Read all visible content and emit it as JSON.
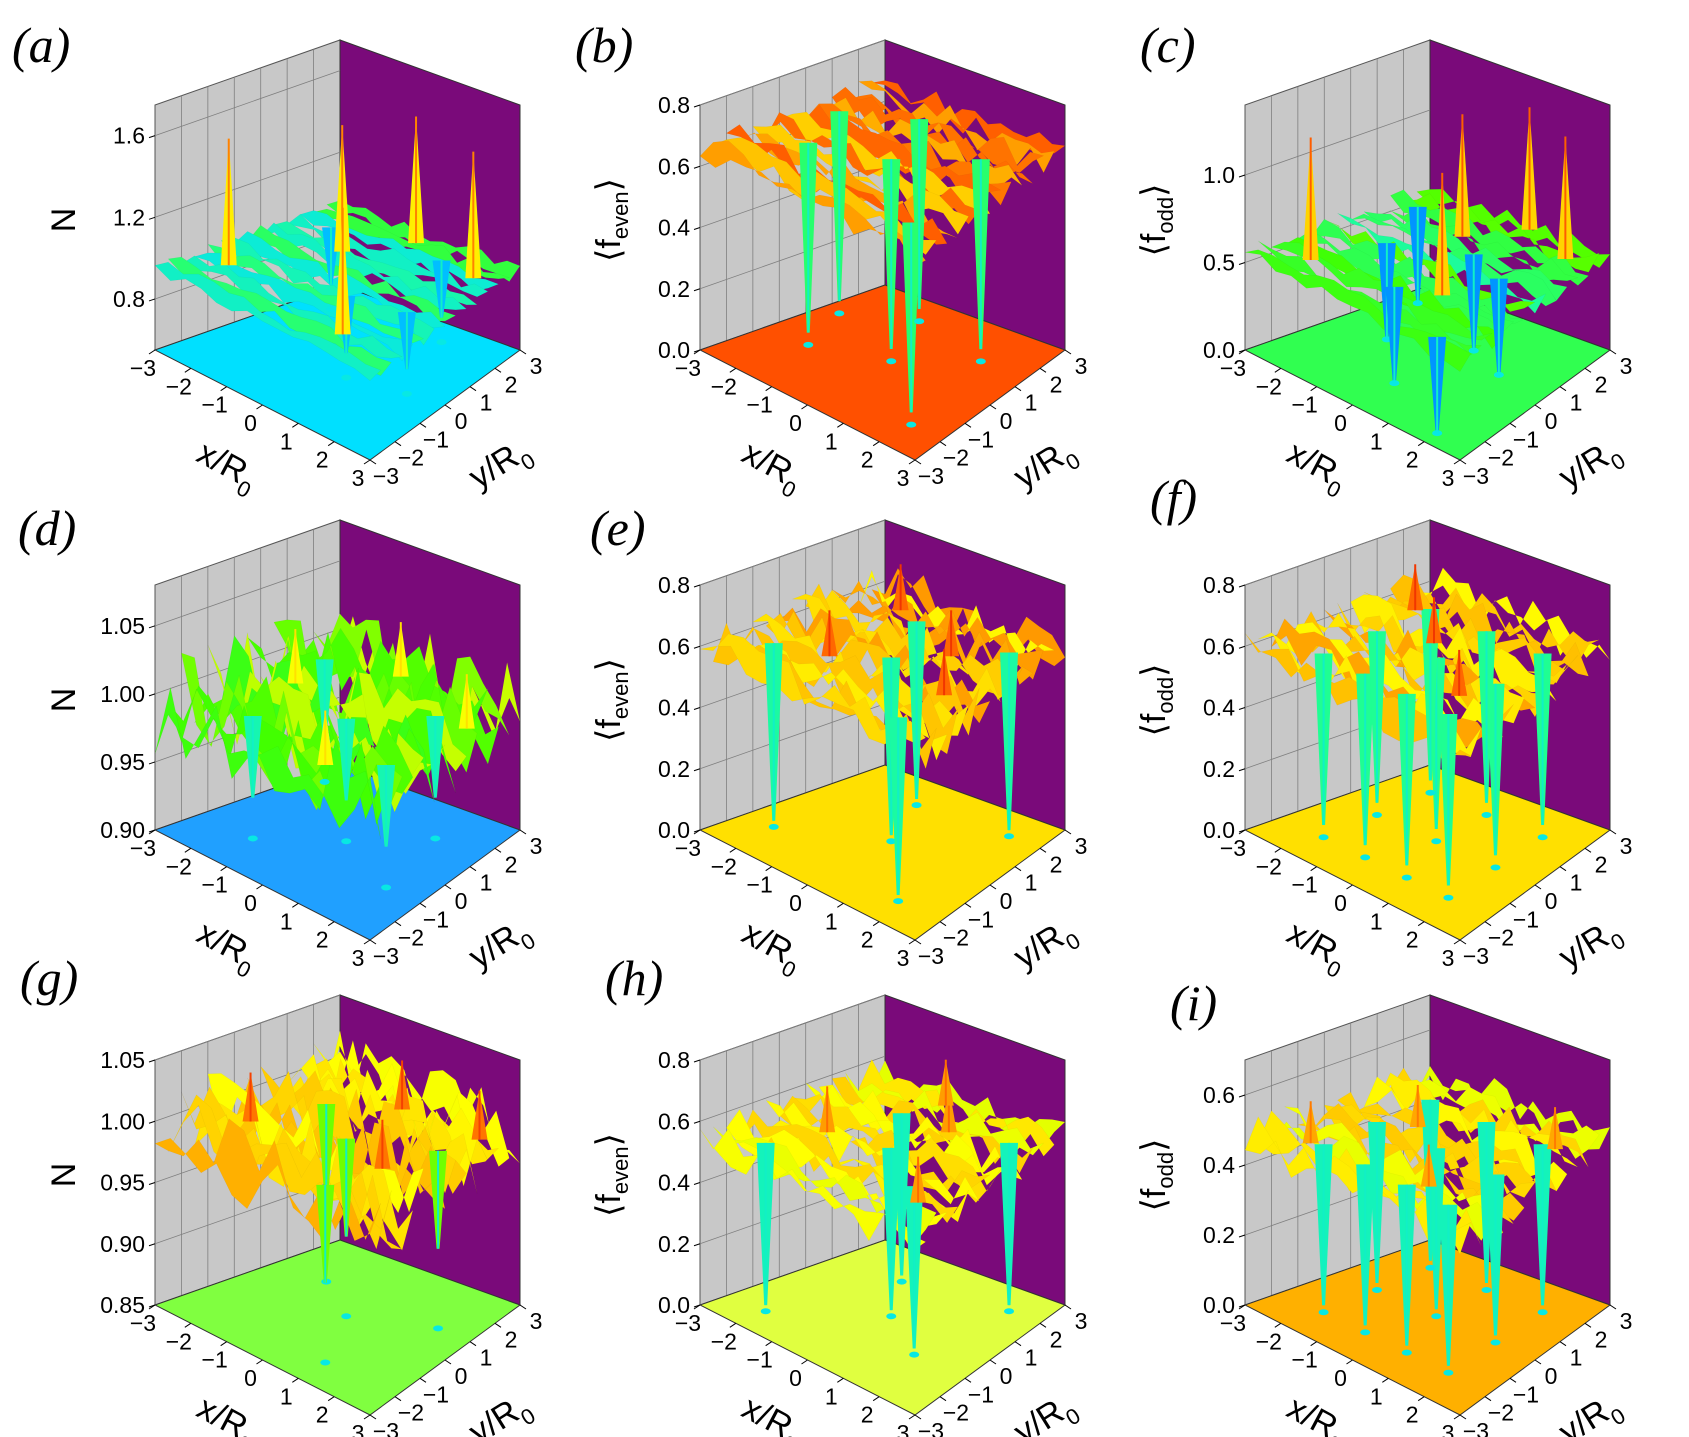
{
  "figure": {
    "colors": {
      "wall_gray": "#c8c8c8",
      "wall_purple": "#7a0a7a",
      "grid": "#7f7f7f",
      "colormap": [
        "#0000c8",
        "#0060ff",
        "#00e0ff",
        "#20ff90",
        "#40ff00",
        "#c0ff00",
        "#ffff00",
        "#ffc000",
        "#ff6000",
        "#e00000"
      ]
    }
  },
  "chart_data": [
    {
      "panel": "(a)",
      "type": "surface3d",
      "zlabel": "N",
      "zlabel_parts": [
        "N"
      ],
      "zticks": [
        "1.6",
        "1.2",
        "0.8"
      ],
      "ztick_values": [
        1.6,
        1.2,
        0.8
      ],
      "zlim": [
        0.55,
        1.75
      ],
      "xticks": [
        "−3",
        "−2",
        "−1",
        "0",
        "1",
        "2",
        "3"
      ],
      "yticks": [
        "−3",
        "−2",
        "−1",
        "0",
        "1",
        "2",
        "3"
      ],
      "xlabel": "x/R",
      "ylabel": "y/R",
      "axis_subscript": "0",
      "base_level": 0.95,
      "roughness": 0.03,
      "depth": 0.28,
      "spike_height": 0.62,
      "spikes_up": [
        [
          -2.2,
          -1.5
        ],
        [
          -1.0,
          1.0
        ],
        [
          1.5,
          -2.0
        ],
        [
          2.3,
          2.0
        ],
        [
          0.0,
          2.5
        ]
      ],
      "spikes_down": [
        [
          0.5,
          -0.6
        ],
        [
          -2.1,
          1.8
        ],
        [
          2.0,
          -0.2
        ],
        [
          1.1,
          2.2
        ]
      ],
      "floor_color": "#00e0ff"
    },
    {
      "panel": "(b)",
      "type": "surface3d",
      "zlabel": "⟨f_even⟩",
      "zlabel_parts": [
        "⟨f",
        "even",
        "⟩"
      ],
      "zticks": [
        "0.8",
        "0.6",
        "0.4",
        "0.2",
        "0.0"
      ],
      "ztick_values": [
        0.8,
        0.6,
        0.4,
        0.2,
        0.0
      ],
      "zlim": [
        0.0,
        0.8
      ],
      "xticks": [
        "−3",
        "−2",
        "−1",
        "0",
        "1",
        "2",
        "3"
      ],
      "yticks": [
        "−3",
        "−2",
        "−1",
        "0",
        "1",
        "2",
        "3"
      ],
      "xlabel": "x/R",
      "ylabel": "y/R",
      "axis_subscript": "0",
      "base_level": 0.66,
      "roughness": 0.04,
      "depth": 0.62,
      "spike_height": 0.0,
      "spikes_up": [],
      "spikes_down": [
        [
          -1.8,
          -0.8
        ],
        [
          0.0,
          0.0
        ],
        [
          2.1,
          -1.9
        ],
        [
          -0.9,
          2.0
        ],
        [
          1.6,
          1.4
        ],
        [
          -2.5,
          1.0
        ]
      ],
      "floor_color": "#ff5000"
    },
    {
      "panel": "(c)",
      "type": "surface3d",
      "zlabel": "⟨f_odd⟩",
      "zlabel_parts": [
        "⟨f",
        "odd",
        "⟩"
      ],
      "zticks": [
        "1.0",
        "0.5",
        "0.0"
      ],
      "ztick_values": [
        1.0,
        0.5,
        0.0
      ],
      "zlim": [
        0.0,
        1.4
      ],
      "xticks": [
        "−3",
        "−2",
        "−1",
        "0",
        "1",
        "2",
        "3"
      ],
      "yticks": [
        "−3",
        "−2",
        "−1",
        "0",
        "1",
        "2",
        "3"
      ],
      "xlabel": "x/R",
      "ylabel": "y/R",
      "axis_subscript": "0",
      "base_level": 0.55,
      "roughness": 0.05,
      "depth": 0.55,
      "spike_height": 0.7,
      "spikes_up": [
        [
          -2.0,
          -2.0
        ],
        [
          -0.5,
          1.5
        ],
        [
          1.0,
          -1.0
        ],
        [
          2.2,
          2.2
        ],
        [
          0.5,
          2.8
        ]
      ],
      "spikes_down": [
        [
          -1.5,
          0.0
        ],
        [
          0.0,
          -1.5
        ],
        [
          1.5,
          0.5
        ],
        [
          0.3,
          1.0
        ],
        [
          -2.4,
          2.0
        ],
        [
          2.0,
          -2.5
        ]
      ],
      "floor_color": "#30ff50"
    },
    {
      "panel": "(d)",
      "type": "surface3d",
      "zlabel": "N",
      "zlabel_parts": [
        "N"
      ],
      "zticks": [
        "1.05",
        "1.00",
        "0.95",
        "0.90"
      ],
      "ztick_values": [
        1.05,
        1.0,
        0.95,
        0.9
      ],
      "zlim": [
        0.9,
        1.08
      ],
      "xticks": [
        "−3",
        "−2",
        "−1",
        "0",
        "1",
        "2",
        "3"
      ],
      "yticks": [
        "−3",
        "−2",
        "−1",
        "0",
        "1",
        "2",
        "3"
      ],
      "xlabel": "x/R",
      "ylabel": "y/R",
      "axis_subscript": "0",
      "base_level": 0.99,
      "roughness": 0.035,
      "depth": 0.06,
      "spike_height": 0.04,
      "spikes_up": [
        [
          -2.0,
          0.5
        ],
        [
          1.0,
          -2.0
        ],
        [
          2.5,
          1.5
        ],
        [
          -0.5,
          2.5
        ]
      ],
      "spikes_down": [
        [
          0.0,
          0.0
        ],
        [
          -1.5,
          -1.5
        ],
        [
          1.5,
          1.5
        ],
        [
          -2.5,
          2.0
        ],
        [
          2.0,
          -1.0
        ]
      ],
      "floor_color": "#20a0ff"
    },
    {
      "panel": "(e)",
      "type": "surface3d",
      "zlabel": "⟨f_even⟩",
      "zlabel_parts": [
        "⟨f",
        "even",
        "⟩"
      ],
      "zticks": [
        "0.8",
        "0.6",
        "0.4",
        "0.2",
        "0.0"
      ],
      "ztick_values": [
        0.8,
        0.6,
        0.4,
        0.2,
        0.0
      ],
      "zlim": [
        0.0,
        0.8
      ],
      "xticks": [
        "−3",
        "−2",
        "−1",
        "0",
        "1",
        "2",
        "3"
      ],
      "yticks": [
        "−3",
        "−2",
        "−1",
        "0",
        "1",
        "2",
        "3"
      ],
      "xlabel": "x/R",
      "ylabel": "y/R",
      "axis_subscript": "0",
      "base_level": 0.6,
      "roughness": 0.07,
      "depth": 0.58,
      "spike_height": 0.15,
      "spikes_up": [
        [
          -1.0,
          -1.0
        ],
        [
          1.0,
          1.0
        ],
        [
          2.0,
          -0.5
        ],
        [
          -1.5,
          2.0
        ]
      ],
      "spikes_down": [
        [
          0.0,
          0.0
        ],
        [
          -2.2,
          -1.5
        ],
        [
          2.0,
          2.0
        ],
        [
          -0.8,
          1.8
        ],
        [
          1.8,
          -2.0
        ]
      ],
      "floor_color": "#ffe000"
    },
    {
      "panel": "(f)",
      "type": "surface3d",
      "zlabel": "⟨f_odd⟩",
      "zlabel_parts": [
        "⟨f",
        "odd",
        "⟩"
      ],
      "zticks": [
        "0.8",
        "0.6",
        "0.4",
        "0.2",
        "0.0"
      ],
      "ztick_values": [
        0.8,
        0.6,
        0.4,
        0.2,
        0.0
      ],
      "zlim": [
        0.0,
        0.8
      ],
      "xticks": [
        "−3",
        "−2",
        "−1",
        "0",
        "1",
        "2",
        "3"
      ],
      "yticks": [
        "−3",
        "−2",
        "−1",
        "0",
        "1",
        "2",
        "3"
      ],
      "xlabel": "x/R",
      "ylabel": "y/R",
      "axis_subscript": "0",
      "base_level": 0.6,
      "roughness": 0.06,
      "depth": 0.56,
      "spike_height": 0.15,
      "spikes_up": [
        [
          -0.5,
          0.5
        ],
        [
          1.5,
          -1.0
        ],
        [
          -2.0,
          1.5
        ]
      ],
      "spikes_down": [
        [
          -1.8,
          -1.8
        ],
        [
          -0.6,
          -1.8
        ],
        [
          0.6,
          -1.8
        ],
        [
          1.8,
          -1.8
        ],
        [
          -1.8,
          0.0
        ],
        [
          0.0,
          0.0
        ],
        [
          1.8,
          0.0
        ],
        [
          -1.8,
          1.8
        ],
        [
          0.0,
          1.8
        ],
        [
          1.8,
          1.8
        ]
      ],
      "floor_color": "#ffe000"
    },
    {
      "panel": "(g)",
      "type": "surface3d",
      "zlabel": "N",
      "zlabel_parts": [
        "N"
      ],
      "zticks": [
        "1.05",
        "1.00",
        "0.95",
        "0.90",
        "0.85"
      ],
      "ztick_values": [
        1.05,
        1.0,
        0.95,
        0.9,
        0.85
      ],
      "zlim": [
        0.85,
        1.05
      ],
      "xticks": [
        "−3",
        "−2",
        "−1",
        "0",
        "1",
        "2",
        "3"
      ],
      "yticks": [
        "−3",
        "−2",
        "−1",
        "0",
        "1",
        "2",
        "3"
      ],
      "xlabel": "x/R",
      "ylabel": "y/R",
      "axis_subscript": "0",
      "base_level": 0.995,
      "roughness": 0.03,
      "depth": 0.08,
      "spike_height": 0.04,
      "spikes_up": [
        [
          -2.0,
          -1.0
        ],
        [
          0.0,
          2.0
        ],
        [
          1.5,
          -0.5
        ],
        [
          2.5,
          2.0
        ]
      ],
      "spikes_down": [
        [
          0.0,
          0.0
        ],
        [
          -1.5,
          1.0
        ],
        [
          1.0,
          -2.0
        ],
        [
          2.0,
          1.0
        ]
      ],
      "floor_color": "#80ff40"
    },
    {
      "panel": "(h)",
      "type": "surface3d",
      "zlabel": "⟨f_even⟩",
      "zlabel_parts": [
        "⟨f",
        "even",
        "⟩"
      ],
      "zticks": [
        "0.8",
        "0.6",
        "0.4",
        "0.2",
        "0.0"
      ],
      "ztick_values": [
        0.8,
        0.6,
        0.4,
        0.2,
        0.0
      ],
      "zlim": [
        0.0,
        0.8
      ],
      "xticks": [
        "−3",
        "−2",
        "−1",
        "0",
        "1",
        "2",
        "3"
      ],
      "yticks": [
        "−3",
        "−2",
        "−1",
        "0",
        "1",
        "2",
        "3"
      ],
      "xlabel": "x/R",
      "ylabel": "y/R",
      "axis_subscript": "0",
      "base_level": 0.55,
      "roughness": 0.06,
      "depth": 0.53,
      "spike_height": 0.15,
      "spikes_up": [
        [
          -1.5,
          -0.5
        ],
        [
          0.5,
          1.5
        ],
        [
          2.0,
          -1.5
        ],
        [
          -0.5,
          2.5
        ]
      ],
      "spikes_down": [
        [
          0.0,
          0.0
        ],
        [
          -2.0,
          -2.0
        ],
        [
          2.0,
          2.0
        ],
        [
          -1.0,
          1.5
        ],
        [
          1.5,
          -1.0
        ]
      ],
      "floor_color": "#e0ff40"
    },
    {
      "panel": "(i)",
      "type": "surface3d",
      "zlabel": "⟨f_odd⟩",
      "zlabel_parts": [
        "⟨f",
        "odd",
        "⟩"
      ],
      "zticks": [
        "0.6",
        "0.4",
        "0.2",
        "0.0"
      ],
      "ztick_values": [
        0.6,
        0.4,
        0.2,
        0.0
      ],
      "zlim": [
        0.0,
        0.7
      ],
      "xticks": [
        "−3",
        "−2",
        "−1",
        "0",
        "1",
        "2",
        "3"
      ],
      "yticks": [
        "−3",
        "−2",
        "−1",
        "0",
        "1",
        "2",
        "3"
      ],
      "xlabel": "x/R",
      "ylabel": "y/R",
      "axis_subscript": "0",
      "base_level": 0.48,
      "roughness": 0.05,
      "depth": 0.46,
      "spike_height": 0.12,
      "spikes_up": [
        [
          -1.0,
          0.5
        ],
        [
          1.0,
          -1.5
        ],
        [
          2.2,
          1.8
        ],
        [
          -2.0,
          -2.0
        ]
      ],
      "spikes_down": [
        [
          -1.8,
          -1.8
        ],
        [
          -0.6,
          -1.8
        ],
        [
          0.6,
          -1.8
        ],
        [
          1.8,
          -1.8
        ],
        [
          -1.8,
          0.0
        ],
        [
          0.0,
          0.0
        ],
        [
          1.8,
          0.0
        ],
        [
          -1.8,
          1.8
        ],
        [
          0.0,
          1.8
        ],
        [
          1.8,
          1.8
        ]
      ],
      "floor_color": "#ffb000"
    }
  ]
}
